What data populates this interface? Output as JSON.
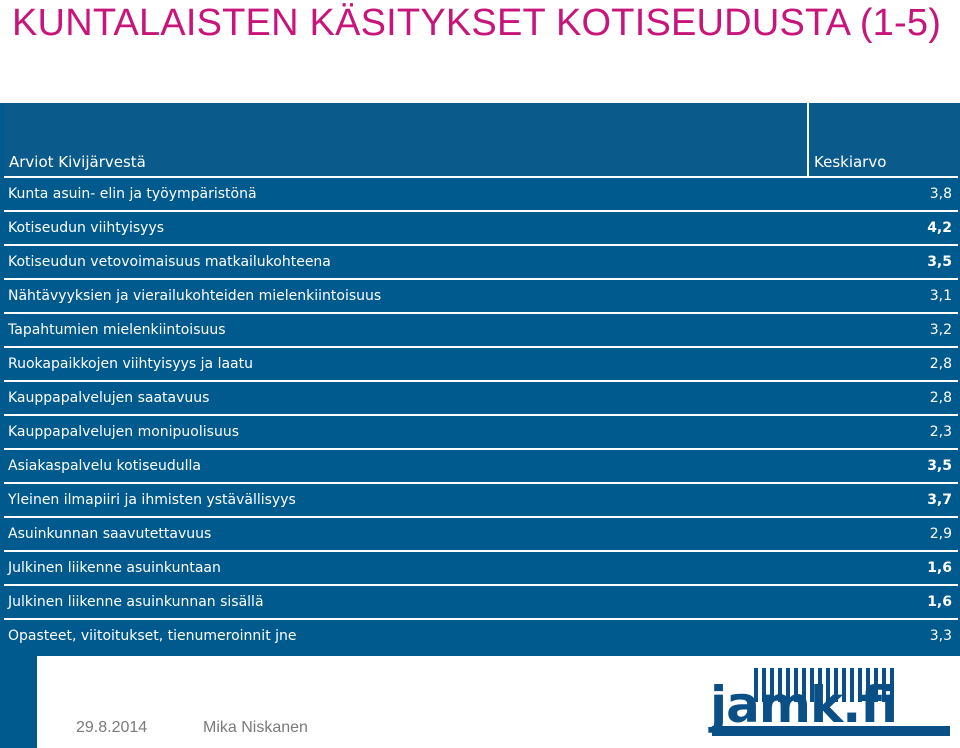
{
  "title": "KUNTALAISTEN KÄSITYKSET KOTISEUDUSTA (1-5)",
  "table": {
    "header_label": "Arviot Kivijärvestä",
    "header_value": "Keskiarvo",
    "rows": [
      {
        "label": "Kunta asuin- elin ja työympäristönä",
        "value": "3,8"
      },
      {
        "label": "Kotiseudun viihtyisyys",
        "value": "4,2"
      },
      {
        "label": "Kotiseudun vetovoimaisuus matkailukohteena",
        "value": "3,5"
      },
      {
        "label": "Nähtävyyksien ja vierailukohteiden mielenkiintoisuus",
        "value": "3,1"
      },
      {
        "label": "Tapahtumien mielenkiintoisuus",
        "value": "3,2"
      },
      {
        "label": "Ruokapaikkojen viihtyisyys ja laatu",
        "value": "2,8"
      },
      {
        "label": "Kauppapalvelujen saatavuus",
        "value": "2,8"
      },
      {
        "label": "Kauppapalvelujen monipuolisuus",
        "value": "2,3"
      },
      {
        "label": "Asiakaspalvelu kotiseudulla",
        "value": "3,5"
      },
      {
        "label": "Yleinen ilmapiiri ja ihmisten ystävällisyys",
        "value": "3,7"
      },
      {
        "label": "Asuinkunnan saavutettavuus",
        "value": "2,9"
      },
      {
        "label": "Julkinen liikenne asuinkuntaan",
        "value": "1,6"
      },
      {
        "label": "Julkinen liikenne asuinkunnan sisällä",
        "value": "1,6"
      },
      {
        "label": "Opasteet, viitoitukset, tienumeroinnit jne",
        "value": "3,3"
      }
    ]
  },
  "footer": {
    "date": "29.8.2014",
    "author": "Mika Niskanen"
  },
  "logo": {
    "text": "jamk.fi",
    "color": "#0a4f86"
  },
  "colors": {
    "title": "#c8157a",
    "table_bg": "#005a8e"
  }
}
